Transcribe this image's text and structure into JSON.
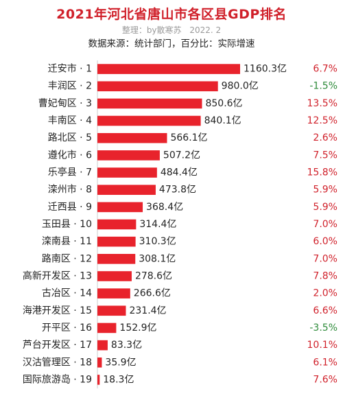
{
  "title": "2021年河北省唐山市各区县GDP排名",
  "subtitle": {
    "author": "整理：by散寒苏",
    "date": "2022. 2"
  },
  "source": {
    "data_source": "数据来源：统计部门，",
    "percent_note": "百分比：实际增速"
  },
  "colors": {
    "bar": "#e8232c",
    "positive": "#d0202a",
    "negative": "#2e8b3a",
    "label": "#222222"
  },
  "chart_data": {
    "type": "bar",
    "orientation": "horizontal",
    "unit": "亿",
    "categories": [
      "迁安市 · 1",
      "丰润区 · 2",
      "曹妃甸区 · 3",
      "丰南区 · 4",
      "路北区 · 5",
      "遵化市 · 6",
      "乐亭县 · 7",
      "滦州市 · 8",
      "迁西县 · 9",
      "玉田县 · 10",
      "滦南县 · 11",
      "路南区 · 12",
      "高新开发区 · 13",
      "古冶区 · 14",
      "海港开发区 · 15",
      "开平区 · 16",
      "芦台开发区 · 17",
      "汉沽管理区 · 18",
      "国际旅游岛 · 19"
    ],
    "values": [
      1160.3,
      980.0,
      850.6,
      840.1,
      566.1,
      507.2,
      484.4,
      473.8,
      368.4,
      314.4,
      310.3,
      308.1,
      278.6,
      266.6,
      231.4,
      152.9,
      83.3,
      35.9,
      18.3
    ],
    "value_labels": [
      "1160.3亿",
      "980.0亿",
      "850.6亿",
      "840.1亿",
      "566.1亿",
      "507.2亿",
      "484.4亿",
      "473.8亿",
      "368.4亿",
      "314.4亿",
      "310.3亿",
      "308.1亿",
      "278.6亿",
      "266.6亿",
      "231.4亿",
      "152.9亿",
      "83.3亿",
      "35.9亿",
      "18.3亿"
    ],
    "growth": [
      "6.7%",
      "-1.5%",
      "13.5%",
      "12.5%",
      "2.6%",
      "7.5%",
      "15.8%",
      "5.9%",
      "5.9%",
      "7.0%",
      "6.0%",
      "7.0%",
      "7.8%",
      "2.0%",
      "6.6%",
      "-3.5%",
      "10.1%",
      "6.1%",
      "7.6%"
    ],
    "xlim": [
      0,
      1160.3
    ],
    "grid": false
  }
}
